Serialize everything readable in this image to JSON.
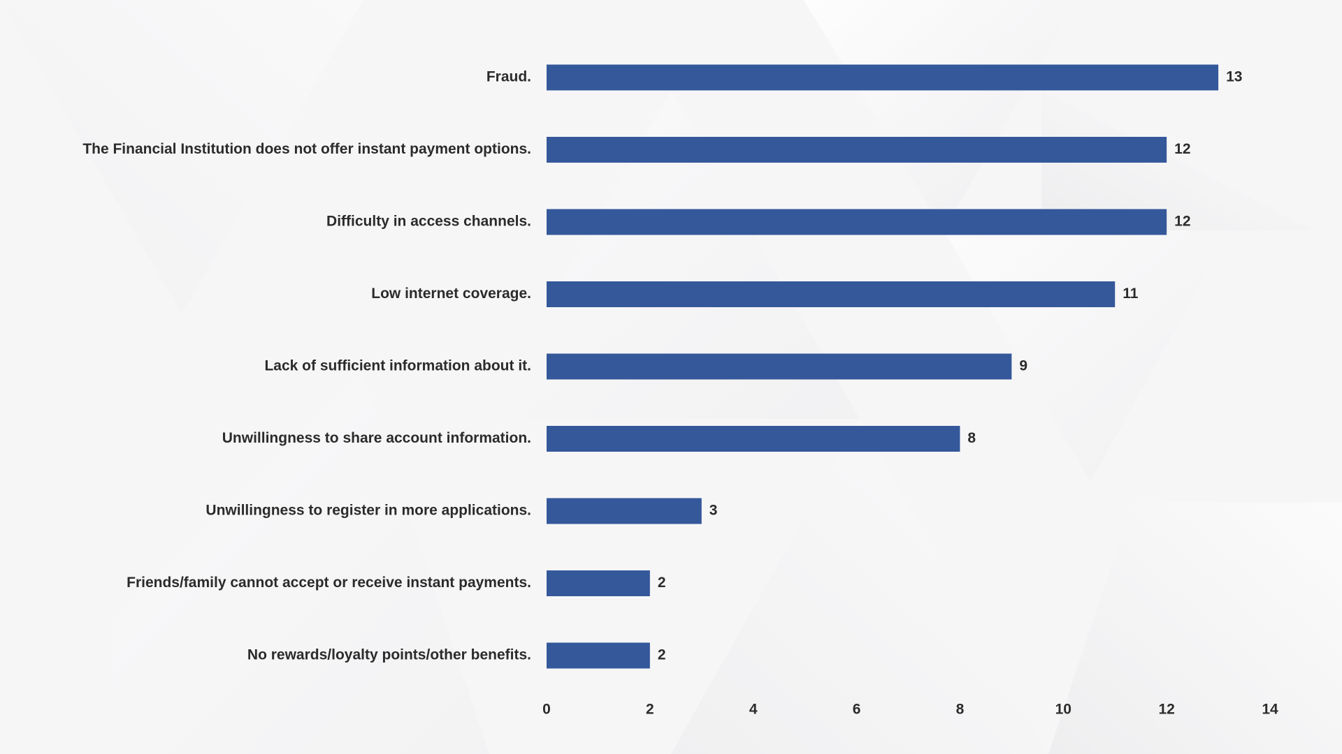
{
  "colors": {
    "bar": "#34589a",
    "text": "#2b2b2b",
    "background": "#f6f6f7"
  },
  "chart_data": {
    "type": "bar",
    "orientation": "horizontal",
    "title": "",
    "xlabel": "",
    "ylabel": "",
    "categories": [
      "Fraud.",
      "The Financial Institution does not offer instant payment options.",
      "Difficulty in access channels.",
      "Low internet coverage.",
      "Lack of sufficient information about it.",
      "Unwillingness to share account information.",
      "Unwillingness to register in more applications.",
      "Friends/family cannot accept or receive instant payments.",
      "No rewards/loyalty points/other benefits."
    ],
    "values": [
      13,
      12,
      12,
      11,
      9,
      8,
      3,
      2,
      2
    ],
    "xlim": [
      0,
      14
    ],
    "xticks": [
      0,
      2,
      4,
      6,
      8,
      10,
      12,
      14
    ],
    "grid": false,
    "legend": "none",
    "data_labels": true
  }
}
